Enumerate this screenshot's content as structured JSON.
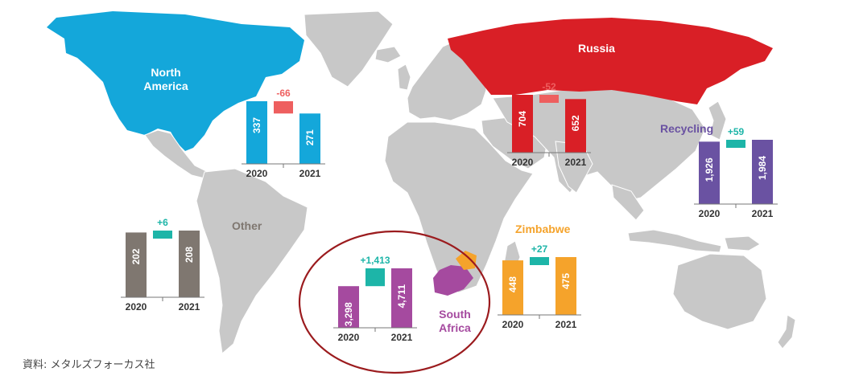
{
  "source_note": "資料: メタルズフォーカス社",
  "colors": {
    "land": "#c8c8c8",
    "north_america": "#14a7da",
    "russia": "#d91f26",
    "south_africa": "#a54a9f",
    "zimbabwe": "#f5a32b",
    "recycling": "#6a52a2",
    "other": "#7f7770",
    "increase": "#1db5a8",
    "decrease": "#ee5f5f",
    "highlight_circle": "#9b1b1e"
  },
  "chart_data": [
    {
      "type": "bar",
      "region": "North America",
      "categories": [
        "2020",
        "2021"
      ],
      "values": [
        337,
        271
      ],
      "change": -66,
      "change_label": "-66"
    },
    {
      "type": "bar",
      "region": "Russia",
      "categories": [
        "2020",
        "2021"
      ],
      "values": [
        704,
        652
      ],
      "change": -52,
      "change_label": "-52"
    },
    {
      "type": "bar",
      "region": "Recycling",
      "categories": [
        "2020",
        "2021"
      ],
      "values": [
        1926,
        1984
      ],
      "change": 59,
      "change_label": "+59"
    },
    {
      "type": "bar",
      "region": "Other",
      "categories": [
        "2020",
        "2021"
      ],
      "values": [
        202,
        208
      ],
      "change": 6,
      "change_label": "+6"
    },
    {
      "type": "bar",
      "region": "South Africa",
      "categories": [
        "2020",
        "2021"
      ],
      "values": [
        3298,
        4711
      ],
      "change": 1413,
      "change_label": "+1,413"
    },
    {
      "type": "bar",
      "region": "Zimbabwe",
      "categories": [
        "2020",
        "2021"
      ],
      "values": [
        448,
        475
      ],
      "change": 27,
      "change_label": "+27"
    }
  ],
  "labels": {
    "north_america": "North America",
    "russia": "Russia",
    "recycling": "Recycling",
    "other": "Other",
    "south_africa": "South Africa",
    "zimbabwe": "Zimbabwe"
  },
  "value_labels": {
    "north_america": [
      "337",
      "271"
    ],
    "russia": [
      "704",
      "652"
    ],
    "recycling": [
      "1,926",
      "1,984"
    ],
    "other": [
      "202",
      "208"
    ],
    "south_africa": [
      "3,298",
      "4,711"
    ],
    "zimbabwe": [
      "448",
      "475"
    ]
  }
}
